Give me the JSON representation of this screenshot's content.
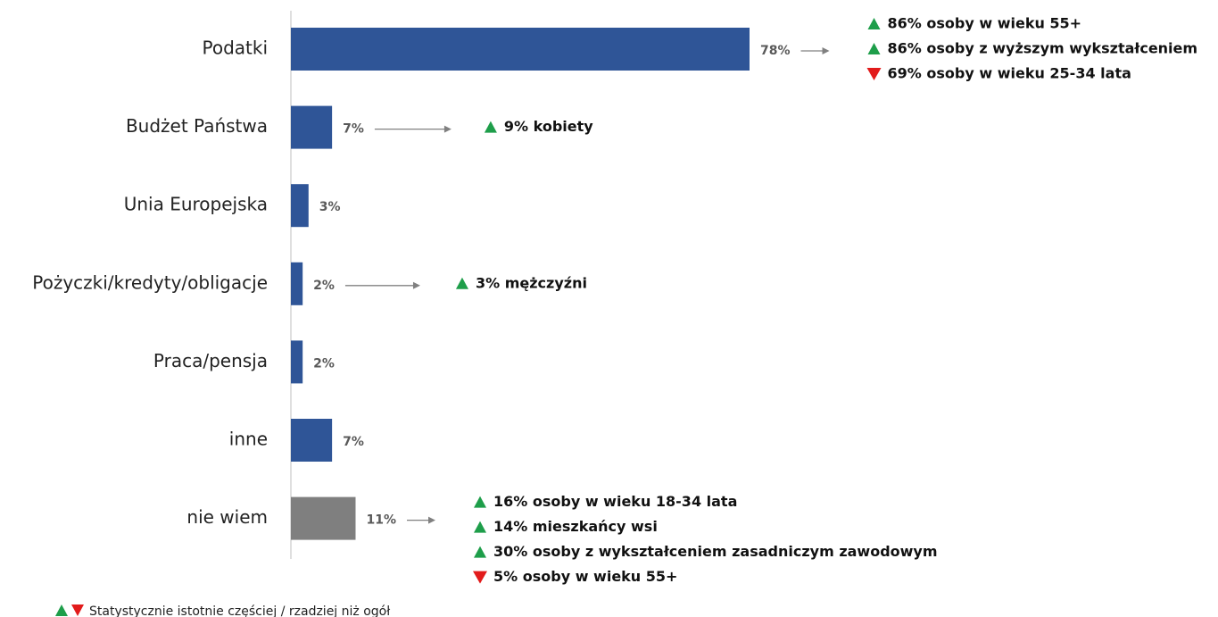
{
  "chart_data": {
    "type": "hbar",
    "categories": [
      "Podatki",
      "Budżet Państwa",
      "Unia Europejska",
      "Pożyczki/kredyty/obligacje",
      "Praca/pensja",
      "inne",
      "nie wiem"
    ],
    "values": [
      78,
      7,
      3,
      2,
      2,
      7,
      11
    ],
    "value_labels": [
      "78%",
      "7%",
      "3%",
      "2%",
      "2%",
      "7%",
      "11%"
    ],
    "colors": [
      "#2f5597",
      "#2f5597",
      "#2f5597",
      "#2f5597",
      "#2f5597",
      "#2f5597",
      "#7f7f7f"
    ],
    "notes": [
      [
        {
          "dir": "up",
          "text": "86% osoby w wieku 55+"
        },
        {
          "dir": "up",
          "text": "86% osoby z wyższym wykształceniem"
        },
        {
          "dir": "down",
          "text": "69% osoby w wieku 25-34 lata"
        }
      ],
      [
        {
          "dir": "up",
          "text": "9% kobiety"
        }
      ],
      [],
      [
        {
          "dir": "up",
          "text": "3% mężczyźni"
        }
      ],
      [],
      [],
      [
        {
          "dir": "up",
          "text": "16% osoby w wieku 18-34 lata"
        },
        {
          "dir": "up",
          "text": "14% mieszkańcy wsi"
        },
        {
          "dir": "up",
          "text": "30% osoby z wykształceniem zasadniczym zawodowym"
        },
        {
          "dir": "down",
          "text": "5% osoby w wieku 55+"
        }
      ]
    ],
    "legend_note": "Statystycznie istotnie częściej / rzadziej niż ogół"
  }
}
